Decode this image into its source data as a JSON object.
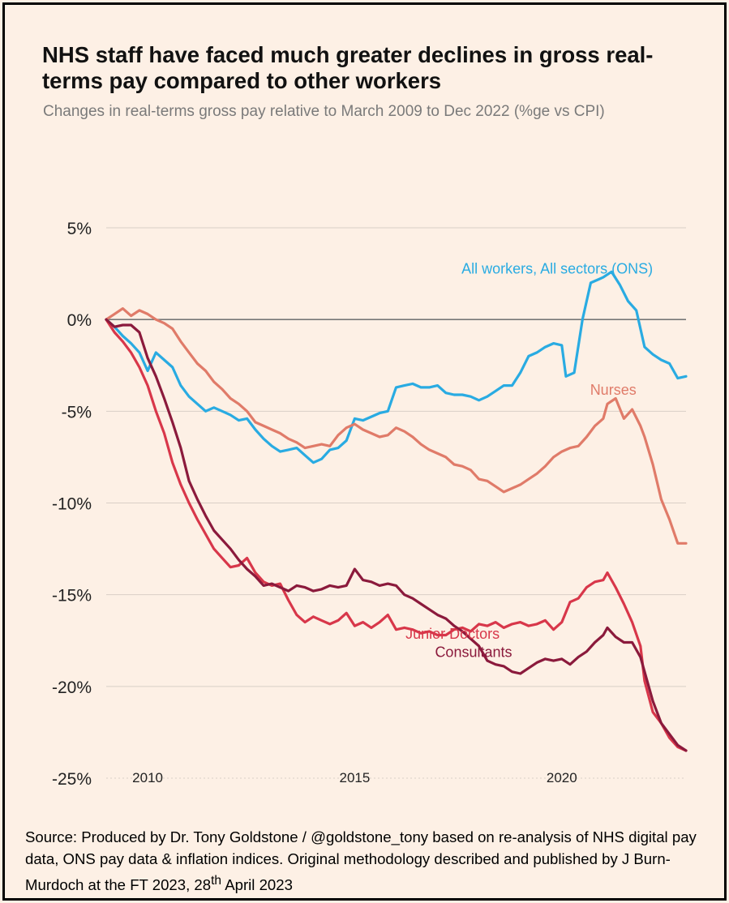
{
  "title": "NHS staff have faced much greater declines in gross real-terms pay compared to other workers",
  "subtitle": "Changes in real-terms gross pay relative to March 2009 to Dec 2022 (%ge vs CPI)",
  "source": {
    "before_sup": "Source: Produced by Dr. Tony Goldstone / @goldstone_tony based on re-analysis of NHS digital pay data, ONS pay data & inflation indices. Original methodology described and published by J Burn-Murdoch at the FT 2023, 28",
    "sup": "th",
    "after_sup": " April 2023"
  },
  "chart_data": {
    "type": "line",
    "title": "NHS staff have faced much greater declines in gross real-terms pay compared to other workers",
    "subtitle": "Changes in real-terms gross pay relative to March 2009 to Dec 2022 (%ge vs CPI)",
    "xlabel": "",
    "ylabel": "",
    "xlim": [
      2009.0,
      2023.0
    ],
    "ylim": [
      -25,
      5
    ],
    "y_ticks": [
      {
        "value": 5,
        "label": "5%"
      },
      {
        "value": 0,
        "label": "0%"
      },
      {
        "value": -5,
        "label": "-5%"
      },
      {
        "value": -10,
        "label": "-10%"
      },
      {
        "value": -15,
        "label": "-15%"
      },
      {
        "value": -20,
        "label": "-20%"
      },
      {
        "value": -25,
        "label": "-25%"
      }
    ],
    "x_ticks": [
      {
        "value": 2010,
        "label": "2010"
      },
      {
        "value": 2015,
        "label": "2015"
      },
      {
        "value": 2020,
        "label": "2020"
      }
    ],
    "grid": true,
    "legend": "direct labels on lines",
    "series": [
      {
        "name": "All workers, All sectors (ONS)",
        "color": "#29abe2",
        "x": [
          2009.0,
          2009.2,
          2009.4,
          2009.6,
          2009.8,
          2010.0,
          2010.2,
          2010.4,
          2010.6,
          2010.8,
          2011.0,
          2011.2,
          2011.4,
          2011.6,
          2011.8,
          2012.0,
          2012.2,
          2012.4,
          2012.6,
          2012.8,
          2013.0,
          2013.2,
          2013.4,
          2013.6,
          2013.8,
          2014.0,
          2014.2,
          2014.4,
          2014.6,
          2014.8,
          2015.0,
          2015.2,
          2015.4,
          2015.6,
          2015.8,
          2016.0,
          2016.2,
          2016.4,
          2016.6,
          2016.8,
          2017.0,
          2017.2,
          2017.4,
          2017.6,
          2017.8,
          2018.0,
          2018.2,
          2018.4,
          2018.6,
          2018.8,
          2019.0,
          2019.2,
          2019.4,
          2019.6,
          2019.8,
          2020.0,
          2020.1,
          2020.3,
          2020.5,
          2020.7,
          2020.9,
          2021.0,
          2021.2,
          2021.4,
          2021.6,
          2021.8,
          2022.0,
          2022.2,
          2022.4,
          2022.6,
          2022.8,
          2023.0
        ],
        "values": [
          0.0,
          -0.4,
          -0.9,
          -1.3,
          -1.8,
          -2.8,
          -1.8,
          -2.2,
          -2.6,
          -3.6,
          -4.2,
          -4.6,
          -5.0,
          -4.8,
          -5.0,
          -5.2,
          -5.5,
          -5.4,
          -6.0,
          -6.5,
          -6.9,
          -7.2,
          -7.1,
          -7.0,
          -7.4,
          -7.8,
          -7.6,
          -7.1,
          -7.0,
          -6.6,
          -5.4,
          -5.5,
          -5.3,
          -5.1,
          -5.0,
          -3.7,
          -3.6,
          -3.5,
          -3.7,
          -3.7,
          -3.6,
          -4.0,
          -4.1,
          -4.1,
          -4.2,
          -4.4,
          -4.2,
          -3.9,
          -3.6,
          -3.6,
          -2.9,
          -2.0,
          -1.8,
          -1.5,
          -1.3,
          -1.4,
          -3.1,
          -2.9,
          0.0,
          2.0,
          2.2,
          2.3,
          2.6,
          1.9,
          1.0,
          0.5,
          -1.5,
          -1.9,
          -2.2,
          -2.4,
          -3.2,
          -3.1
        ]
      },
      {
        "name": "Nurses",
        "color": "#e07b69",
        "x": [
          2009.0,
          2009.2,
          2009.4,
          2009.6,
          2009.8,
          2010.0,
          2010.2,
          2010.4,
          2010.6,
          2010.8,
          2011.0,
          2011.2,
          2011.4,
          2011.6,
          2011.8,
          2012.0,
          2012.2,
          2012.4,
          2012.6,
          2012.8,
          2013.0,
          2013.2,
          2013.4,
          2013.6,
          2013.8,
          2014.0,
          2014.2,
          2014.4,
          2014.6,
          2014.8,
          2015.0,
          2015.2,
          2015.4,
          2015.6,
          2015.8,
          2016.0,
          2016.2,
          2016.4,
          2016.6,
          2016.8,
          2017.0,
          2017.2,
          2017.4,
          2017.6,
          2017.8,
          2018.0,
          2018.2,
          2018.4,
          2018.6,
          2018.8,
          2019.0,
          2019.2,
          2019.4,
          2019.6,
          2019.8,
          2020.0,
          2020.2,
          2020.4,
          2020.6,
          2020.8,
          2021.0,
          2021.1,
          2021.3,
          2021.5,
          2021.7,
          2021.9,
          2022.0,
          2022.2,
          2022.4,
          2022.6,
          2022.8,
          2023.0
        ],
        "values": [
          0.0,
          0.3,
          0.6,
          0.2,
          0.5,
          0.3,
          0.0,
          -0.2,
          -0.5,
          -1.2,
          -1.8,
          -2.4,
          -2.8,
          -3.4,
          -3.8,
          -4.3,
          -4.6,
          -5.0,
          -5.6,
          -5.8,
          -6.0,
          -6.2,
          -6.5,
          -6.7,
          -7.0,
          -6.9,
          -6.8,
          -6.9,
          -6.3,
          -5.9,
          -5.7,
          -6.0,
          -6.2,
          -6.4,
          -6.3,
          -5.9,
          -6.1,
          -6.4,
          -6.8,
          -7.1,
          -7.3,
          -7.5,
          -7.9,
          -8.0,
          -8.2,
          -8.7,
          -8.8,
          -9.1,
          -9.4,
          -9.2,
          -9.0,
          -8.7,
          -8.4,
          -8.0,
          -7.5,
          -7.2,
          -7.0,
          -6.9,
          -6.4,
          -5.8,
          -5.4,
          -4.6,
          -4.3,
          -5.4,
          -4.9,
          -5.8,
          -6.4,
          -7.9,
          -9.8,
          -10.9,
          -12.2,
          -12.2
        ]
      },
      {
        "name": "Junior Doctors",
        "color": "#d8374a",
        "x": [
          2009.0,
          2009.2,
          2009.4,
          2009.6,
          2009.8,
          2010.0,
          2010.2,
          2010.4,
          2010.6,
          2010.8,
          2011.0,
          2011.2,
          2011.4,
          2011.6,
          2011.8,
          2012.0,
          2012.2,
          2012.4,
          2012.6,
          2012.8,
          2013.0,
          2013.2,
          2013.4,
          2013.6,
          2013.8,
          2014.0,
          2014.2,
          2014.4,
          2014.6,
          2014.8,
          2015.0,
          2015.2,
          2015.4,
          2015.6,
          2015.8,
          2016.0,
          2016.2,
          2016.4,
          2016.6,
          2016.8,
          2017.0,
          2017.2,
          2017.4,
          2017.6,
          2017.8,
          2018.0,
          2018.2,
          2018.4,
          2018.6,
          2018.8,
          2019.0,
          2019.2,
          2019.4,
          2019.6,
          2019.8,
          2020.0,
          2020.2,
          2020.4,
          2020.6,
          2020.8,
          2021.0,
          2021.1,
          2021.3,
          2021.5,
          2021.7,
          2021.9,
          2022.0,
          2022.2,
          2022.4,
          2022.6,
          2022.8,
          2023.0
        ],
        "values": [
          0.0,
          -0.7,
          -1.2,
          -1.8,
          -2.6,
          -3.6,
          -5.0,
          -6.2,
          -7.8,
          -9.0,
          -10.0,
          -10.9,
          -11.7,
          -12.5,
          -13.0,
          -13.5,
          -13.4,
          -13.0,
          -13.8,
          -14.3,
          -14.5,
          -14.4,
          -15.3,
          -16.1,
          -16.5,
          -16.2,
          -16.4,
          -16.6,
          -16.4,
          -16.0,
          -16.7,
          -16.5,
          -16.8,
          -16.5,
          -16.1,
          -16.9,
          -16.8,
          -16.9,
          -17.1,
          -17.0,
          -17.2,
          -17.2,
          -16.9,
          -16.8,
          -17.0,
          -16.6,
          -16.7,
          -16.5,
          -16.8,
          -16.6,
          -16.5,
          -16.7,
          -16.6,
          -16.4,
          -16.9,
          -16.5,
          -15.4,
          -15.2,
          -14.6,
          -14.3,
          -14.2,
          -13.8,
          -14.6,
          -15.5,
          -16.5,
          -17.8,
          -19.7,
          -21.4,
          -22.0,
          -22.8,
          -23.3,
          -23.5
        ]
      },
      {
        "name": "Consultants",
        "color": "#8b1a3c",
        "x": [
          2009.0,
          2009.2,
          2009.4,
          2009.6,
          2009.8,
          2010.0,
          2010.2,
          2010.4,
          2010.6,
          2010.8,
          2011.0,
          2011.2,
          2011.4,
          2011.6,
          2011.8,
          2012.0,
          2012.2,
          2012.4,
          2012.6,
          2012.8,
          2013.0,
          2013.2,
          2013.4,
          2013.6,
          2013.8,
          2014.0,
          2014.2,
          2014.4,
          2014.6,
          2014.8,
          2015.0,
          2015.2,
          2015.4,
          2015.6,
          2015.8,
          2016.0,
          2016.2,
          2016.4,
          2016.6,
          2016.8,
          2017.0,
          2017.2,
          2017.4,
          2017.6,
          2017.8,
          2018.0,
          2018.2,
          2018.4,
          2018.6,
          2018.8,
          2019.0,
          2019.2,
          2019.4,
          2019.6,
          2019.8,
          2020.0,
          2020.2,
          2020.4,
          2020.6,
          2020.8,
          2021.0,
          2021.1,
          2021.3,
          2021.5,
          2021.7,
          2021.9,
          2022.0,
          2022.2,
          2022.4,
          2022.6,
          2022.8,
          2023.0
        ],
        "values": [
          0.0,
          -0.4,
          -0.3,
          -0.3,
          -0.7,
          -2.1,
          -3.1,
          -4.3,
          -5.6,
          -7.0,
          -8.8,
          -9.8,
          -10.7,
          -11.5,
          -12.0,
          -12.5,
          -13.1,
          -13.6,
          -14.0,
          -14.5,
          -14.4,
          -14.6,
          -14.8,
          -14.5,
          -14.6,
          -14.8,
          -14.7,
          -14.5,
          -14.6,
          -14.5,
          -13.6,
          -14.2,
          -14.3,
          -14.5,
          -14.4,
          -14.5,
          -15.0,
          -15.2,
          -15.5,
          -15.8,
          -16.1,
          -16.3,
          -16.7,
          -17.0,
          -17.4,
          -17.8,
          -18.6,
          -18.8,
          -18.9,
          -19.2,
          -19.3,
          -19.0,
          -18.7,
          -18.5,
          -18.6,
          -18.5,
          -18.8,
          -18.4,
          -18.1,
          -17.6,
          -17.2,
          -16.8,
          -17.3,
          -17.6,
          -17.6,
          -18.4,
          -19.2,
          -20.8,
          -22.0,
          -22.6,
          -23.2,
          -23.5
        ]
      }
    ]
  }
}
